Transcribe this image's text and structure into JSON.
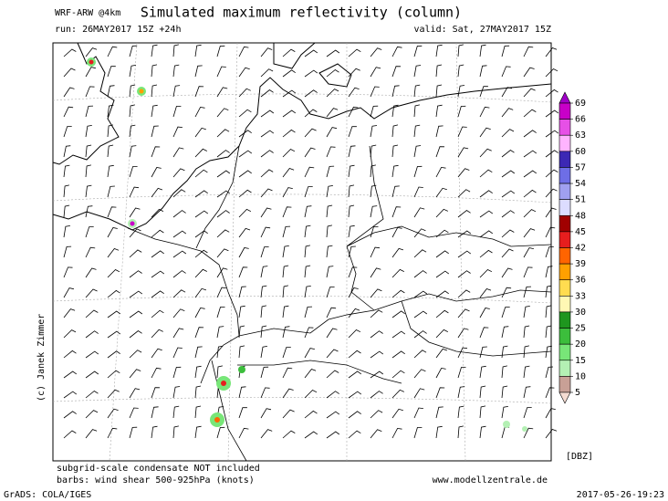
{
  "header": {
    "model": "WRF-ARW @4km",
    "title": "Simulated maximum reflectivity (column)",
    "run": "run: 26MAY2017 15Z +24h",
    "valid": "valid: Sat, 27MAY2017 15Z"
  },
  "colorbar": {
    "unit": "[DBZ]",
    "labels": [
      69,
      66,
      63,
      60,
      57,
      54,
      51,
      48,
      45,
      42,
      39,
      36,
      33,
      30,
      25,
      20,
      15,
      10,
      5
    ],
    "colors": [
      "#a000c8",
      "#c800c8",
      "#e650e6",
      "#ffb4ff",
      "#3c28b4",
      "#6e6ee6",
      "#a0a0f0",
      "#dcdcff",
      "#a00000",
      "#e61e1e",
      "#ff6400",
      "#ffa000",
      "#ffdc50",
      "#fff8b4",
      "#1e961e",
      "#3cbe3c",
      "#78e678",
      "#b4f0b4",
      "#c8a096",
      "#f5dcd2"
    ]
  },
  "credit": "(c) Janek Zimmer",
  "footer": {
    "note1": "subgrid-scale condensate NOT included",
    "note2": "barbs: wind shear 500-925hPa (knots)",
    "site": "www.modellzentrale.de",
    "grads": "GrADS: COLA/IGES",
    "date": "2017-05-26-19:23"
  }
}
